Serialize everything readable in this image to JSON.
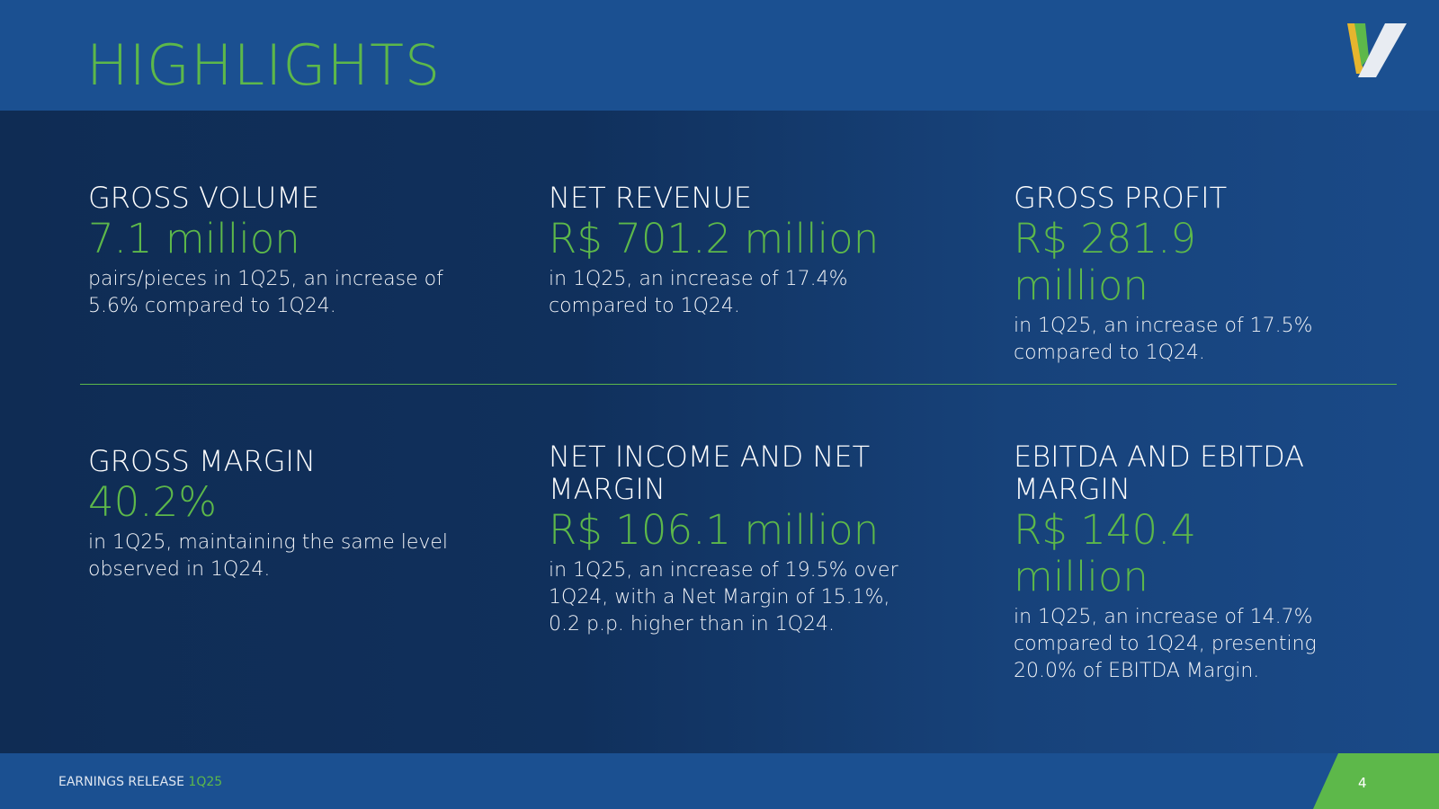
{
  "header": {
    "title": "HIGHLIGHTS"
  },
  "cards": [
    {
      "heading": "GROSS VOLUME",
      "value": "7.1 million",
      "description": "pairs/pieces in 1Q25, an increase of 5.6% compared to 1Q24."
    },
    {
      "heading": "NET REVENUE",
      "value": "R$ 701.2  million",
      "description": "in 1Q25, an increase of 17.4% compared to 1Q24."
    },
    {
      "heading": "GROSS PROFIT",
      "value": "R$ 281.9 million",
      "description": "in 1Q25, an increase of 17.5% compared to 1Q24."
    },
    {
      "heading": "GROSS MARGIN",
      "value": "40.2%",
      "description": "in 1Q25, maintaining the same level observed in 1Q24."
    },
    {
      "heading": "NET INCOME AND NET MARGIN",
      "value": "R$ 106.1 million",
      "description": "in 1Q25, an increase of 19.5% over 1Q24, with a Net Margin of 15.1%, 0.2 p.p. higher than in 1Q24."
    },
    {
      "heading": "EBITDA  AND EBITDA MARGIN",
      "value": "R$ 140.4 million",
      "description": "in 1Q25, an increase of  14.7% compared to 1Q24, presenting 20.0% of EBITDA Margin."
    }
  ],
  "footer": {
    "label": "EARNINGS RELEASE",
    "period": "1Q25",
    "page": "4"
  }
}
